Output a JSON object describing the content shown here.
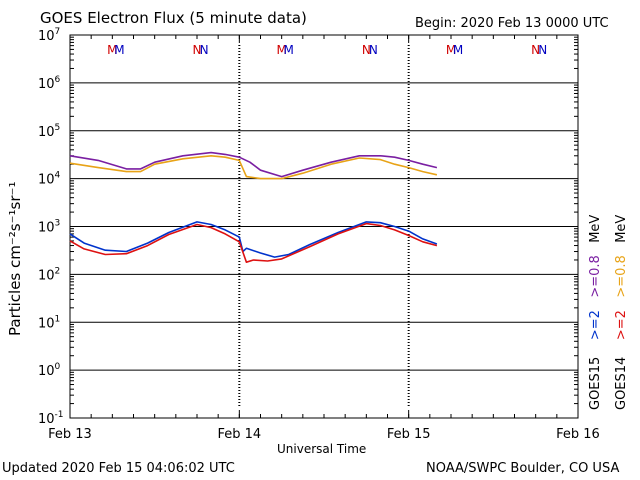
{
  "chart_data": {
    "type": "line",
    "title": "GOES Electron Flux (5 minute data)",
    "subtitle": "Begin: 2020 Feb 13 0000 UTC",
    "xlabel": "Universal Time",
    "ylabel": "Particles cm⁻²s⁻¹sr⁻¹",
    "y_scale": "log",
    "ylim": [
      0.1,
      10000000
    ],
    "y_ticks": [
      {
        "value": 10000000,
        "base": "10",
        "exp": "7"
      },
      {
        "value": 1000000,
        "base": "10",
        "exp": "6"
      },
      {
        "value": 100000,
        "base": "10",
        "exp": "5"
      },
      {
        "value": 10000,
        "base": "10",
        "exp": "4"
      },
      {
        "value": 1000,
        "base": "10",
        "exp": "3"
      },
      {
        "value": 100,
        "base": "10",
        "exp": "2"
      },
      {
        "value": 10,
        "base": "10",
        "exp": "1"
      },
      {
        "value": 1,
        "base": "10",
        "exp": "0"
      },
      {
        "value": 0.1,
        "base": "10",
        "exp": "-1"
      }
    ],
    "xlim": [
      "2020-02-13 00:00",
      "2020-02-16 00:00"
    ],
    "x_ticks": [
      {
        "value": "2020-02-13 00:00",
        "label": "Feb 13"
      },
      {
        "value": "2020-02-14 00:00",
        "label": "Feb 14"
      },
      {
        "value": "2020-02-15 00:00",
        "label": "Feb 15"
      },
      {
        "value": "2020-02-16 00:00",
        "label": "Feb 16"
      }
    ],
    "threshold": 1000,
    "grid": true,
    "markers": [
      {
        "label": "M",
        "color": "#d00000",
        "x": "2020-02-13 06:00"
      },
      {
        "label": "M",
        "color": "#0000c0",
        "x": "2020-02-13 07:00"
      },
      {
        "label": "N",
        "color": "#d00000",
        "x": "2020-02-13 18:00"
      },
      {
        "label": "N",
        "color": "#0000c0",
        "x": "2020-02-13 19:00"
      },
      {
        "label": "M",
        "color": "#d00000",
        "x": "2020-02-14 06:00"
      },
      {
        "label": "M",
        "color": "#0000c0",
        "x": "2020-02-14 07:00"
      },
      {
        "label": "N",
        "color": "#d00000",
        "x": "2020-02-14 18:00"
      },
      {
        "label": "N",
        "color": "#0000c0",
        "x": "2020-02-14 19:00"
      },
      {
        "label": "M",
        "color": "#d00000",
        "x": "2020-02-15 06:00"
      },
      {
        "label": "M",
        "color": "#0000c0",
        "x": "2020-02-15 07:00"
      },
      {
        "label": "N",
        "color": "#d00000",
        "x": "2020-02-15 18:00"
      },
      {
        "label": "N",
        "color": "#0000c0",
        "x": "2020-02-15 19:00"
      }
    ],
    "series": [
      {
        "name": "GOES15 >=0.8 MeV",
        "color": "#7a1fa2",
        "x": [
          "2020-02-13 00:00",
          "2020-02-13 04:00",
          "2020-02-13 08:00",
          "2020-02-13 10:00",
          "2020-02-13 12:00",
          "2020-02-13 16:00",
          "2020-02-13 20:00",
          "2020-02-13 22:00",
          "2020-02-14 00:00",
          "2020-02-14 01:30",
          "2020-02-14 03:00",
          "2020-02-14 06:00",
          "2020-02-14 09:00",
          "2020-02-14 13:00",
          "2020-02-14 17:00",
          "2020-02-14 20:00",
          "2020-02-14 22:00",
          "2020-02-15 00:00",
          "2020-02-15 02:00",
          "2020-02-15 04:00"
        ],
        "values": [
          30000,
          24000,
          16000,
          16000,
          22000,
          30000,
          35000,
          32000,
          28000,
          22000,
          15000,
          11000,
          15000,
          22000,
          30000,
          30000,
          28000,
          24000,
          20000,
          17000
        ]
      },
      {
        "name": "GOES14 >=0.8 MeV",
        "color": "#e8a317",
        "x": [
          "2020-02-13 00:00",
          "2020-02-13 04:00",
          "2020-02-13 08:00",
          "2020-02-13 10:00",
          "2020-02-13 12:00",
          "2020-02-13 16:00",
          "2020-02-13 20:00",
          "2020-02-13 22:00",
          "2020-02-14 00:00",
          "2020-02-14 01:00",
          "2020-02-14 03:00",
          "2020-02-14 06:00",
          "2020-02-14 09:00",
          "2020-02-14 13:00",
          "2020-02-14 17:00",
          "2020-02-14 20:00",
          "2020-02-14 22:00",
          "2020-02-15 00:00",
          "2020-02-15 02:00",
          "2020-02-15 04:00"
        ],
        "values": [
          21000,
          17000,
          14000,
          14000,
          20000,
          26000,
          30000,
          28000,
          24000,
          11000,
          10000,
          10000,
          13000,
          20000,
          27000,
          25000,
          20000,
          17000,
          14000,
          12000
        ]
      },
      {
        "name": "GOES15 >=2 MeV",
        "color": "#0033cc",
        "x": [
          "2020-02-13 00:00",
          "2020-02-13 02:00",
          "2020-02-13 05:00",
          "2020-02-13 08:00",
          "2020-02-13 11:00",
          "2020-02-13 14:00",
          "2020-02-13 18:00",
          "2020-02-13 20:00",
          "2020-02-13 22:00",
          "2020-02-14 00:00",
          "2020-02-14 00:30",
          "2020-02-14 01:00",
          "2020-02-14 03:00",
          "2020-02-14 05:00",
          "2020-02-14 07:00",
          "2020-02-14 10:00",
          "2020-02-14 14:00",
          "2020-02-14 18:00",
          "2020-02-14 20:00",
          "2020-02-14 22:00",
          "2020-02-15 00:00",
          "2020-02-15 02:00",
          "2020-02-15 04:00"
        ],
        "values": [
          700,
          450,
          320,
          300,
          450,
          750,
          1250,
          1100,
          850,
          600,
          300,
          350,
          280,
          230,
          260,
          420,
          750,
          1250,
          1200,
          1000,
          800,
          550,
          430
        ]
      },
      {
        "name": "GOES14 >=2 MeV",
        "color": "#dd1111",
        "x": [
          "2020-02-13 00:00",
          "2020-02-13 02:00",
          "2020-02-13 05:00",
          "2020-02-13 08:00",
          "2020-02-13 11:00",
          "2020-02-13 14:00",
          "2020-02-13 18:00",
          "2020-02-13 20:00",
          "2020-02-13 22:00",
          "2020-02-14 00:00",
          "2020-02-14 01:00",
          "2020-02-14 02:00",
          "2020-02-14 04:00",
          "2020-02-14 06:00",
          "2020-02-14 10:00",
          "2020-02-14 14:00",
          "2020-02-14 18:00",
          "2020-02-14 20:00",
          "2020-02-14 22:00",
          "2020-02-15 00:00",
          "2020-02-15 02:00",
          "2020-02-15 04:00"
        ],
        "values": [
          500,
          340,
          260,
          270,
          400,
          680,
          1100,
          950,
          700,
          480,
          180,
          200,
          190,
          210,
          380,
          700,
          1150,
          1050,
          850,
          650,
          480,
          400
        ]
      }
    ]
  },
  "legend": {
    "right": [
      {
        "text": "GOES15",
        "color": "#000000"
      },
      {
        "text": ">=2",
        "color": "#0033cc"
      },
      {
        "text": ">=0.8",
        "color": "#7a1fa2"
      },
      {
        "text": "MeV",
        "color": "#000000"
      }
    ],
    "far_right": [
      {
        "text": "GOES14",
        "color": "#000000"
      },
      {
        "text": ">=2",
        "color": "#dd1111"
      },
      {
        "text": ">=0.8",
        "color": "#e8a317"
      },
      {
        "text": "MeV",
        "color": "#000000"
      }
    ]
  },
  "footer": {
    "updated": "Updated 2020 Feb 15 04:06:02 UTC",
    "source": "NOAA/SWPC Boulder, CO USA"
  }
}
